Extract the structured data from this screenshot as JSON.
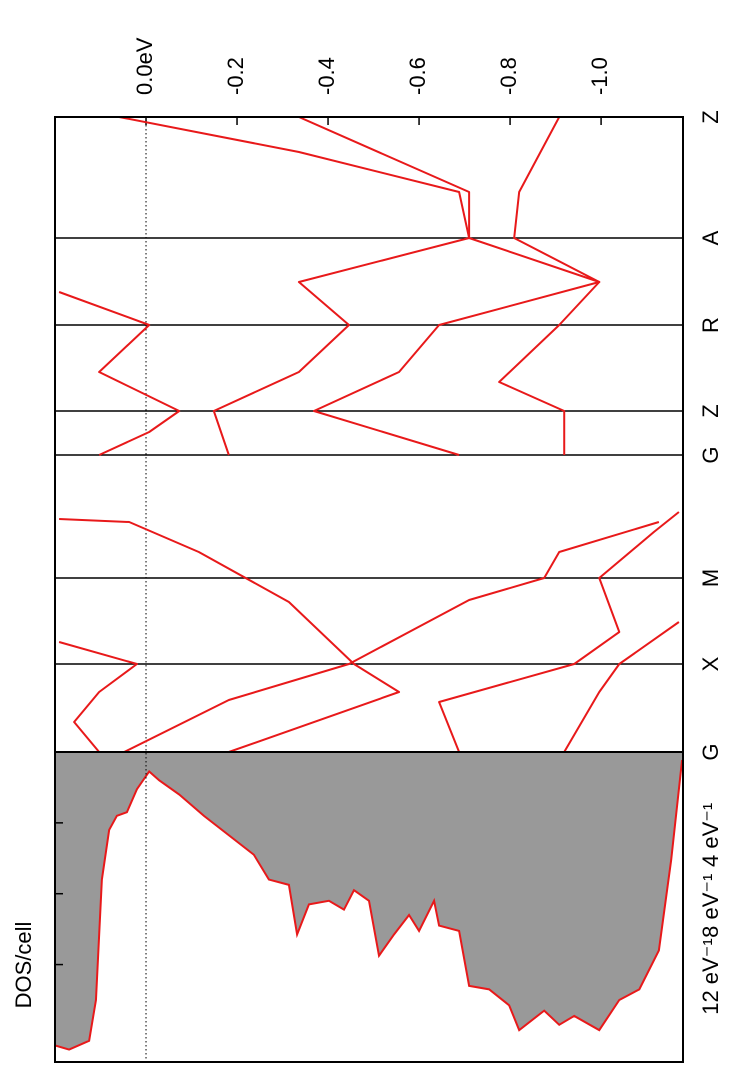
{
  "chart_data": {
    "type": "bandstructure",
    "title": "DOS/cell",
    "color": "#e8191a",
    "dos_fill": "#999999",
    "elim": [
      0.2,
      -1.18
    ],
    "eticks": [
      {
        "value": 0,
        "label": "0.0eV"
      },
      -0.2,
      -0.4,
      -0.6,
      -0.8,
      {
        "value": -1,
        "label": "-1.0"
      }
    ],
    "fermi_level": 0,
    "klim": [
      0,
      6.35
    ],
    "kticks": [
      {
        "value": 0,
        "label": "G"
      },
      {
        "value": 0.88,
        "label": "X"
      },
      {
        "value": 1.74,
        "label": "M"
      },
      {
        "value": 2.97,
        "label": "G"
      },
      {
        "value": 3.41,
        "label": "Z"
      },
      {
        "value": 4.27,
        "label": "R"
      },
      {
        "value": 5.14,
        "label": "A"
      },
      {
        "value": 6.35,
        "label": "Z"
      }
    ],
    "bands": [
      {
        "k": [
          0,
          0.3,
          0.6,
          0.88,
          1.1
        ],
        "energy": [
          0.103,
          0.158,
          0.103,
          0.02,
          0.191
        ]
      },
      {
        "k": [
          0,
          0.52,
          0.88,
          1.52,
          1.74,
          2.0,
          2.3
        ],
        "energy": [
          0.048,
          -0.182,
          -0.446,
          -0.71,
          -0.875,
          -0.908,
          -1.127
        ]
      },
      {
        "k": [
          0,
          0.6,
          0.88,
          1.5,
          2.0,
          2.3,
          2.33
        ],
        "energy": [
          -0.182,
          -0.556,
          -0.457,
          -0.314,
          -0.116,
          0.037,
          0.191
        ]
      },
      {
        "k": [
          0,
          0.5,
          0.88,
          1.2,
          1.74,
          2.2,
          2.4
        ],
        "energy": [
          -0.688,
          -0.644,
          -0.941,
          -1.04,
          -0.996,
          -1.116,
          -1.171
        ]
      },
      {
        "k": [
          0,
          0.6,
          0.88,
          1.3
        ],
        "energy": [
          -0.919,
          -0.996,
          -1.04,
          -1.171
        ]
      },
      {
        "k": [
          2.97,
          3.2,
          3.41,
          3.8,
          4.27,
          4.6
        ],
        "energy": [
          0.103,
          -0.007,
          -0.073,
          0.103,
          -0.007,
          0.191
        ]
      },
      {
        "k": [
          2.97,
          3.41,
          3.8,
          4.27,
          4.7,
          5.14,
          5.6,
          6.0,
          6.35
        ],
        "energy": [
          -0.182,
          -0.149,
          -0.336,
          -0.446,
          -0.336,
          -0.71,
          -0.688,
          -0.336,
          0.059
        ]
      },
      {
        "k": [
          2.97,
          3.41,
          3.8,
          4.27,
          4.7,
          5.14,
          5.6,
          6.35
        ],
        "energy": [
          -0.688,
          -0.369,
          -0.556,
          -0.644,
          -0.996,
          -0.809,
          -0.82,
          -0.908
        ]
      },
      {
        "k": [
          2.97,
          3.41,
          3.7,
          4.27,
          4.7,
          5.14,
          5.6,
          6.35
        ],
        "energy": [
          -0.919,
          -0.919,
          -0.776,
          -0.908,
          -0.996,
          -0.71,
          -0.71,
          -0.336
        ]
      }
    ],
    "dos": {
      "dlim": [
        0,
        17.5
      ],
      "dticks": [
        {
          "value": 4,
          "label": "4 eV⁻¹"
        },
        {
          "value": 8,
          "label": "8 eV⁻¹"
        },
        {
          "value": 12,
          "label": "12 eV⁻¹"
        }
      ],
      "energy": [
        0.202,
        0.169,
        0.125,
        0.11,
        0.097,
        0.081,
        0.064,
        0.042,
        0.02,
        -0.007,
        -0.029,
        -0.073,
        -0.127,
        -0.182,
        -0.237,
        -0.27,
        -0.314,
        -0.332,
        -0.358,
        -0.402,
        -0.435,
        -0.457,
        -0.49,
        -0.512,
        -0.545,
        -0.578,
        -0.6,
        -0.633,
        -0.644,
        -0.688,
        -0.71,
        -0.754,
        -0.798,
        -0.82,
        -0.875,
        -0.908,
        -0.941,
        -0.996,
        -1.04,
        -1.084,
        -1.127,
        -1.154,
        -1.178
      ],
      "values": [
        16.55,
        16.8,
        16.3,
        14.0,
        7.2,
        4.4,
        3.6,
        3.4,
        2.1,
        1.1,
        1.6,
        2.4,
        3.6,
        4.7,
        5.8,
        7.2,
        7.5,
        10.3,
        8.6,
        8.4,
        8.9,
        7.8,
        8.4,
        11.5,
        10.3,
        9.2,
        10.1,
        8.4,
        9.8,
        10.1,
        13.2,
        13.4,
        14.3,
        15.7,
        14.6,
        15.4,
        14.9,
        15.7,
        14.0,
        13.4,
        11.2,
        6.1,
        0.45
      ]
    }
  }
}
